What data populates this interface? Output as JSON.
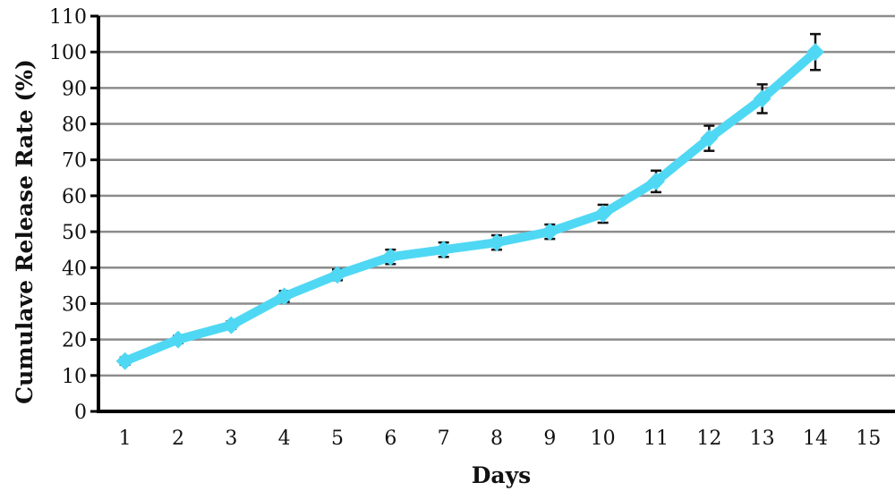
{
  "chart_data": {
    "type": "line",
    "title": "",
    "xlabel": "Days",
    "ylabel": "Cumulave Release Rate (%)",
    "x_ticks": [
      1,
      2,
      3,
      4,
      5,
      6,
      7,
      8,
      9,
      10,
      11,
      12,
      13,
      14,
      15
    ],
    "y_ticks": [
      0,
      10,
      20,
      30,
      40,
      50,
      60,
      70,
      80,
      90,
      100,
      110
    ],
    "xlim": [
      0.5,
      15.5
    ],
    "ylim": [
      0,
      110
    ],
    "grid": true,
    "legend": "none",
    "series": [
      {
        "color": "#4fd8f4",
        "marker": "diamond",
        "x": [
          1,
          2,
          3,
          4,
          5,
          6,
          7,
          8,
          9,
          10,
          11,
          12,
          13,
          14
        ],
        "y": [
          14,
          20,
          24,
          32,
          38,
          43,
          45,
          47,
          50,
          55,
          64,
          76,
          87,
          100
        ],
        "error": [
          1,
          1,
          1,
          1.5,
          1.5,
          2,
          2,
          2,
          2,
          2.5,
          3,
          3.5,
          4,
          5
        ]
      }
    ]
  }
}
